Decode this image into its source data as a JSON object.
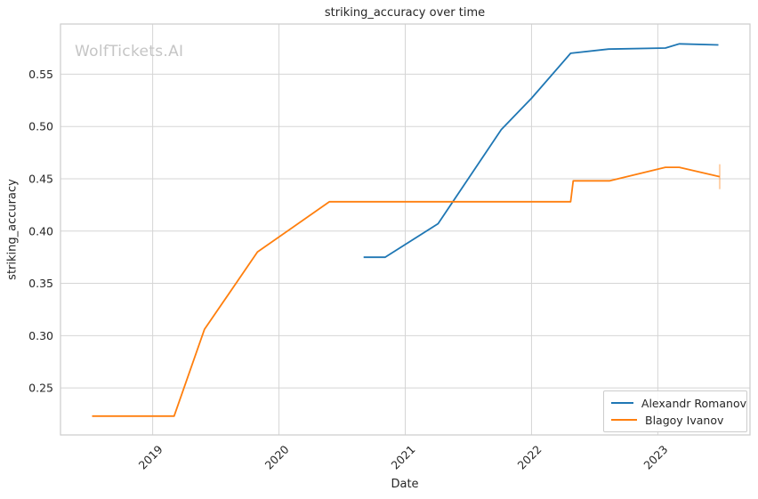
{
  "title": "striking_accuracy over time",
  "watermark": "WolfTickets.AI",
  "xlabel": "Date",
  "ylabel": "striking_accuracy",
  "colors": {
    "series_blue": "#1f77b4",
    "series_orange": "#ff7f0e",
    "grid": "#d5d5d5",
    "spine": "#cccccc",
    "text": "#262626",
    "watermark": "#c5c5c5",
    "background": "#ffffff"
  },
  "legend": {
    "position": "lower right",
    "items": [
      "Alexandr Romanov",
      "Blagoy Ivanov"
    ]
  },
  "chart_data": {
    "type": "line",
    "title": "striking_accuracy over time",
    "xlabel": "Date",
    "ylabel": "striking_accuracy",
    "xlim": [
      2018.27,
      2023.73
    ],
    "ylim": [
      0.205,
      0.598
    ],
    "x_ticks": [
      2019,
      2020,
      2021,
      2022,
      2023
    ],
    "x_tick_labels": [
      "2019",
      "2020",
      "2021",
      "2022",
      "2023"
    ],
    "y_ticks": [
      0.25,
      0.3,
      0.35,
      0.4,
      0.45,
      0.5,
      0.55
    ],
    "grid": true,
    "legend_position": "lower right",
    "series": [
      {
        "name": "Alexandr Romanov",
        "color": "#1f77b4",
        "points": [
          [
            2020.67,
            0.375
          ],
          [
            2020.84,
            0.375
          ],
          [
            2021.26,
            0.407
          ],
          [
            2021.76,
            0.497
          ],
          [
            2022.0,
            0.527
          ],
          [
            2022.31,
            0.57
          ],
          [
            2022.61,
            0.574
          ],
          [
            2023.06,
            0.575
          ],
          [
            2023.17,
            0.579
          ],
          [
            2023.48,
            0.578
          ]
        ],
        "end_tick": false
      },
      {
        "name": "Blagoy Ivanov",
        "color": "#ff7f0e",
        "points": [
          [
            2018.52,
            0.223
          ],
          [
            2019.17,
            0.223
          ],
          [
            2019.41,
            0.306
          ],
          [
            2019.83,
            0.38
          ],
          [
            2020.4,
            0.428
          ],
          [
            2022.31,
            0.428
          ],
          [
            2022.33,
            0.448
          ],
          [
            2022.62,
            0.448
          ],
          [
            2023.06,
            0.461
          ],
          [
            2023.17,
            0.461
          ],
          [
            2023.49,
            0.452
          ]
        ],
        "end_tick": true
      }
    ]
  }
}
